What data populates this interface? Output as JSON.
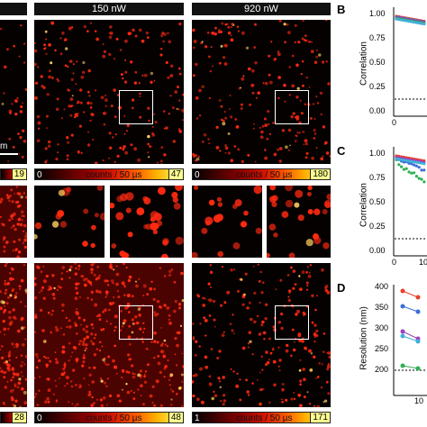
{
  "columns": [
    {
      "header": "",
      "key": "c0"
    },
    {
      "header": "150 nW",
      "key": "c1"
    },
    {
      "header": "920 nW",
      "key": "c2"
    }
  ],
  "scale_bar_fragment": "m",
  "colorbars": {
    "row1": [
      {
        "min": "",
        "unit": "",
        "max": "19"
      },
      {
        "min": "0",
        "unit": "counts / 50 µs",
        "max": "47"
      },
      {
        "min": "0",
        "unit": "counts / 50 µs",
        "max": "180"
      }
    ],
    "row3": [
      {
        "min": "",
        "unit": "",
        "max": "28"
      },
      {
        "min": "0",
        "unit": "counts / 50 µs",
        "max": "48"
      },
      {
        "min": "1",
        "unit": "counts / 50 µs",
        "max": "171"
      }
    ]
  },
  "panels": {
    "B": {
      "letter": "B",
      "ylabel": "Correlation",
      "yticks": [
        "1.00",
        "0.75",
        "0.50",
        "0.25",
        "0.00"
      ],
      "xticks": [
        "0"
      ]
    },
    "C": {
      "letter": "C",
      "ylabel": "Correlation",
      "yticks": [
        "1.00",
        "0.75",
        "0.50",
        "0.25",
        "0.00"
      ],
      "xticks": [
        "0",
        "10"
      ]
    },
    "D": {
      "letter": "D",
      "ylabel": "Resolution (nm)",
      "yticks": [
        "400",
        "350",
        "300",
        "250",
        "200"
      ],
      "xticks": [
        "10"
      ]
    }
  },
  "colors": {
    "spot": "#ff2a10",
    "spot_bright": "#ffd060",
    "series": [
      "#e8402a",
      "#3a6fd8",
      "#a040c0",
      "#30b050",
      "#40b0d8"
    ]
  }
}
